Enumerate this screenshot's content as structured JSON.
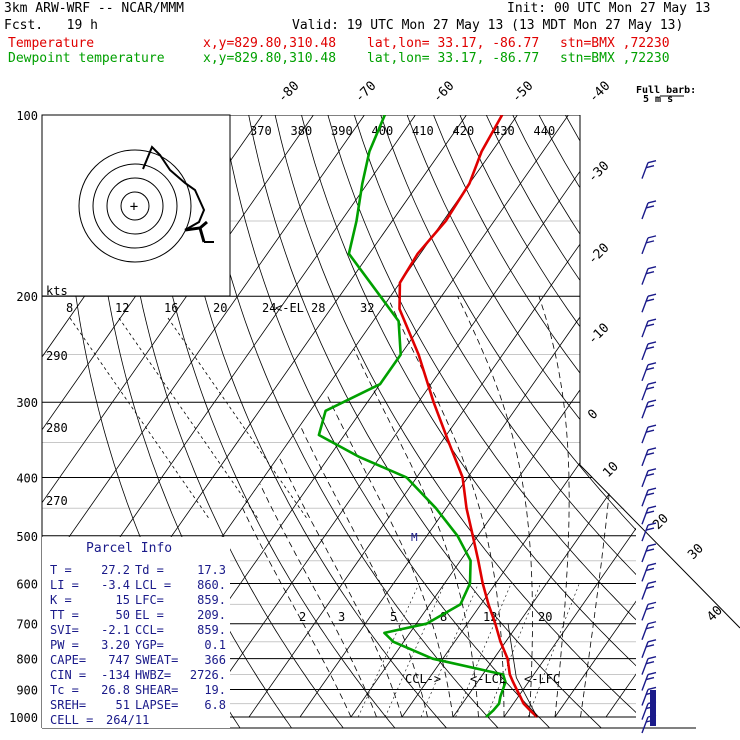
{
  "header": {
    "model": "3km ARW-WRF -- NCAR/MMM",
    "init": "Init: 00 UTC Mon 27 May 13",
    "fcst": "Fcst.   19 h",
    "valid": "Valid: 19 UTC Mon 27 May 13 (13 MDT Mon 27 May 13)",
    "temp_label": "Temperature",
    "dew_label": "Dewpoint temperature",
    "xy": "x,y=829.80,310.48",
    "latlon": "lat,lon= 33.17, -86.77",
    "stn": "stn=BMX ,72230",
    "temp_color": "#e00000",
    "dew_color": "#00a000"
  },
  "chart_data": {
    "type": "line",
    "title": "",
    "pressure_levels": [
      100,
      200,
      300,
      400,
      500,
      600,
      700,
      800,
      900,
      1000
    ],
    "pressure_labels": [
      "100",
      "200",
      "300",
      "400",
      "500",
      "600",
      "700",
      "800",
      "900",
      "1000"
    ],
    "temperature_ticks": [
      "-80",
      "-70",
      "-60",
      "-50",
      "-40",
      "-30",
      "-20",
      "-10",
      "0",
      "10",
      "20",
      "30",
      "40"
    ],
    "theta_labels": [
      "370",
      "380",
      "390",
      "400",
      "410",
      "420",
      "430",
      "440"
    ],
    "mixing_ratio_labels": [
      "2",
      "3",
      "5",
      "8",
      "12",
      "20"
    ],
    "inset_speed_labels": [
      "8",
      "12",
      "16",
      "20",
      "24",
      "28",
      "32"
    ],
    "inset_theta_labels": [
      "290",
      "280",
      "270"
    ],
    "inset_unit": "kts",
    "el_marker": "<-EL",
    "series": [
      {
        "name": "Temperature",
        "color": "#e00000",
        "points": [
          [
            1000,
            26.5
          ],
          [
            975,
            24.2
          ],
          [
            950,
            22.0
          ],
          [
            925,
            20.4
          ],
          [
            900,
            18.7
          ],
          [
            875,
            17.0
          ],
          [
            850,
            15.3
          ],
          [
            800,
            12.7
          ],
          [
            750,
            9.0
          ],
          [
            700,
            5.5
          ],
          [
            650,
            1.5
          ],
          [
            600,
            -2.5
          ],
          [
            550,
            -6.5
          ],
          [
            500,
            -11.0
          ],
          [
            450,
            -16.0
          ],
          [
            400,
            -21.0
          ],
          [
            350,
            -28.5
          ],
          [
            300,
            -37.0
          ],
          [
            250,
            -46.5
          ],
          [
            210,
            -56.5
          ],
          [
            190,
            -60.0
          ],
          [
            170,
            -60.5
          ],
          [
            150,
            -59.5
          ],
          [
            130,
            -60.0
          ],
          [
            115,
            -62.0
          ],
          [
            100,
            -63.0
          ]
        ]
      },
      {
        "name": "Dewpoint temperature",
        "color": "#00a000",
        "points": [
          [
            1000,
            16.5
          ],
          [
            975,
            17.0
          ],
          [
            950,
            17.2
          ],
          [
            925,
            16.5
          ],
          [
            900,
            16.0
          ],
          [
            875,
            15.5
          ],
          [
            850,
            14.0
          ],
          [
            800,
            -2.0
          ],
          [
            750,
            -12.0
          ],
          [
            725,
            -15.0
          ],
          [
            700,
            -8.0
          ],
          [
            650,
            -4.0
          ],
          [
            600,
            -5.0
          ],
          [
            550,
            -8.0
          ],
          [
            500,
            -14.0
          ],
          [
            450,
            -22.0
          ],
          [
            400,
            -32.0
          ],
          [
            370,
            -44.0
          ],
          [
            340,
            -55.0
          ],
          [
            310,
            -57.0
          ],
          [
            280,
            -50.0
          ],
          [
            250,
            -50.0
          ],
          [
            220,
            -55.0
          ],
          [
            200,
            -62.0
          ],
          [
            170,
            -74.0
          ],
          [
            150,
            -77.0
          ],
          [
            130,
            -81.0
          ],
          [
            115,
            -84.0
          ],
          [
            100,
            -86.0
          ]
        ]
      }
    ],
    "level_markers": [
      {
        "label": "CCL->",
        "p": 859
      },
      {
        "label": "<-LCL",
        "p": 860
      },
      {
        "label": "<-LFC",
        "p": 859
      }
    ],
    "wind_barbs": {
      "title": "Full barb:",
      "unit": "5 m s",
      "levels": [
        100,
        120,
        140,
        160,
        180,
        200,
        220,
        240,
        260,
        280,
        300,
        330,
        360,
        390,
        420,
        450,
        480,
        520,
        560,
        600,
        650,
        700,
        750,
        800,
        850,
        900,
        950,
        1000
      ]
    }
  },
  "parcel": {
    "title": "Parcel Info",
    "rows": [
      [
        "T  =",
        "27.2",
        "Td =",
        "17.3"
      ],
      [
        "LI =",
        "-3.4",
        "LCL =",
        "860."
      ],
      [
        "K  =",
        "15",
        "LFC=",
        "859."
      ],
      [
        "TT =",
        "50",
        "EL =",
        "209."
      ],
      [
        "SVI=",
        "-2.1",
        "CCL=",
        "859."
      ],
      [
        "PW =",
        "3.20",
        "YGP=",
        "0.1"
      ],
      [
        "CAPE=",
        "747",
        "SWEAT=",
        "366"
      ],
      [
        "CIN =",
        "-134",
        "HWBZ=",
        "2726."
      ],
      [
        "Tc =",
        "26.8",
        "SHEAR=",
        "19."
      ],
      [
        "SREH=",
        "51",
        "LAPSE=",
        "6.8"
      ],
      [
        "CELL =",
        "264/11",
        "",
        ""
      ]
    ]
  }
}
